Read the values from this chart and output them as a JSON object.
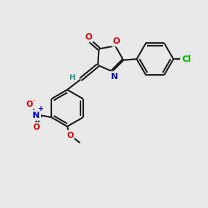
{
  "bg_color": "#e8e8e8",
  "bond_color": "#1a1a1a",
  "lw": 1.6,
  "fs": 8.5,
  "xlim": [
    0,
    10
  ],
  "ylim": [
    0,
    10
  ],
  "ring_O_color": "#dd0000",
  "N_color": "#0000cc",
  "Cl_color": "#00aa00",
  "carbonyl_O_color": "#dd0000",
  "OCH3_color": "#dd0000",
  "NO2_N_color": "#0000cc",
  "NO2_O_color": "#dd0000",
  "H_color": "#2a9d8f"
}
